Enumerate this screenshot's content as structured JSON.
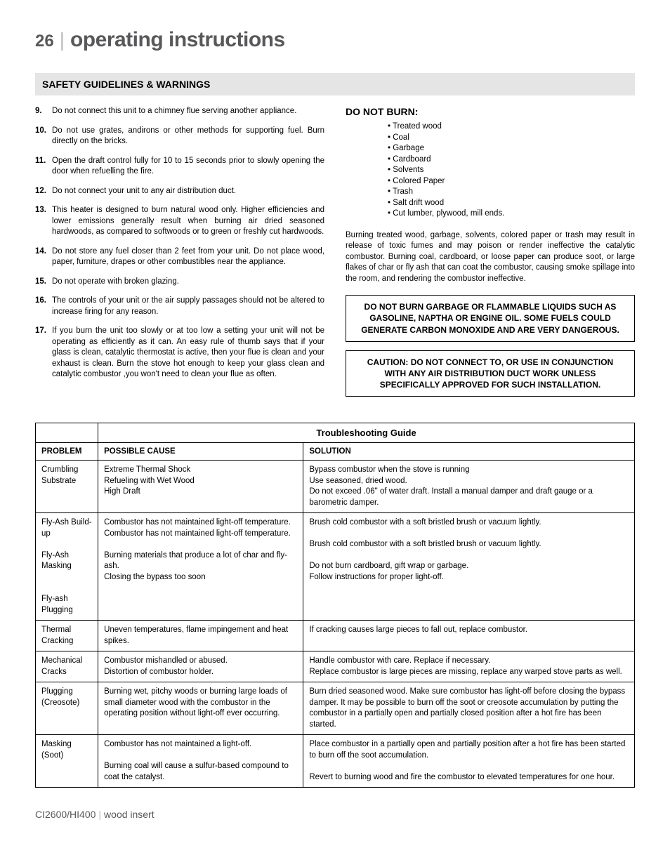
{
  "header": {
    "page": "26",
    "title": "operating instructions"
  },
  "banner": "SAFETY GUIDELINES & WARNINGS",
  "guidelines": [
    {
      "n": "9.",
      "t": "Do not connect this unit to a chimney flue serving another appliance."
    },
    {
      "n": "10.",
      "t": "Do not use grates, andirons or other methods for supporting fuel. Burn directly on the bricks."
    },
    {
      "n": "11.",
      "t": "Open the draft control fully for 10 to 15 seconds prior to slowly opening the door when refuelling the fire."
    },
    {
      "n": "12.",
      "t": "Do not connect your unit to any air distribution duct."
    },
    {
      "n": "13.",
      "t": "This heater is designed to burn natural wood only. Higher efficiencies and lower emissions generally result when burning air dried seasoned hardwoods, as compared to softwoods or to green or freshly cut hardwoods."
    },
    {
      "n": "14.",
      "t": "Do not store any fuel closer than 2 feet from your unit. Do not place wood, paper, furniture, drapes or other combustibles near the appliance."
    },
    {
      "n": "15.",
      "t": "Do not operate with broken glazing."
    },
    {
      "n": "16.",
      "t": "The controls of your unit or the air supply passages should not be altered to increase firing for any reason."
    },
    {
      "n": "17.",
      "t": "If you burn the unit too slowly or at too low a setting your unit will not be operating as efficiently as it can.  An easy rule of thumb says that if your glass is clean, catalytic  thermostat is active, then your flue is clean and your exhaust is clean.  Burn the stove hot enough to keep your glass clean and catalytic combustor ,you won't need to clean your flue as often."
    }
  ],
  "doNotBurn": {
    "heading": "DO NOT BURN:",
    "items": [
      "Treated wood",
      "Coal",
      "Garbage",
      "Cardboard",
      "Solvents",
      "Colored Paper",
      "Trash",
      "Salt drift wood",
      "Cut lumber, plywood, mill ends."
    ]
  },
  "burnPara": "Burning treated wood, garbage, solvents, colored paper or trash may result in release of toxic fumes and may poison or render ineffective the catalytic combustor. Burning coal, cardboard, or loose paper can produce soot, or large flakes of char or fly ash that can coat the combustor, causing smoke spillage into the room, and rendering the combustor ineffective.",
  "warnings": [
    "DO NOT BURN GARBAGE OR FLAMMABLE LIQUIDS SUCH AS GASOLINE, NAPTHA OR ENGINE OIL. SOME FUELS COULD GENERATE CARBON MONOXIDE AND ARE VERY DANGEROUS.",
    "CAUTION: DO NOT CONNECT TO, OR USE IN CONJUNCTION WITH ANY AIR DISTRIBUTION DUCT WORK UNLESS SPECIFICALLY APPROVED FOR SUCH INSTALLATION."
  ],
  "table": {
    "title": "Troubleshooting Guide",
    "headers": [
      "PROBLEM",
      "POSSIBLE CAUSE",
      "SOLUTION"
    ],
    "rows": [
      [
        "Crumbling Substrate",
        "Extreme Thermal Shock\nRefueling with Wet Wood\nHigh Draft",
        "Bypass combustor when the stove is running\nUse seasoned, dried wood.\nDo not exceed .06\" of water draft. Install a manual damper and draft gauge or a barometric damper."
      ],
      [
        "Fly-Ash Build-up\n\nFly-Ash Masking\n\n\nFly-ash Plugging",
        "Combustor has not maintained light-off temperature.\nCombustor has not maintained light-off temperature.\n\nBurning materials that produce a lot of char and fly-ash.\nClosing the bypass too soon",
        "Brush cold combustor with a soft bristled brush or vacuum lightly.\n\nBrush cold combustor with a soft bristled brush or vacuum lightly.\n\nDo not burn cardboard, gift wrap or garbage.\nFollow instructions for proper light-off."
      ],
      [
        "Thermal Cracking",
        "Uneven temperatures, flame impingement and heat spikes.",
        "If cracking causes large pieces to fall out, replace combustor."
      ],
      [
        "Mechanical Cracks",
        "Combustor mishandled or abused.\nDistortion of combustor holder.",
        "Handle combustor with care. Replace if necessary.\nReplace combustor is large pieces are missing, replace any warped stove parts as well."
      ],
      [
        "Plugging (Creosote)",
        "Burning wet, pitchy woods or burning large loads of small diameter wood with the combustor in the operating position without light-off ever occurring.",
        "Burn dried seasoned wood. Make sure combustor has light-off before closing the bypass damper. It may be possible to burn off the soot or creosote accumulation by putting the combustor in a partially open and partially closed position after a hot fire has been started."
      ],
      [
        "Masking (Soot)",
        "Combustor has not maintained a light-off.\n\nBurning coal will cause a sulfur-based compound to coat the catalyst.",
        "Place combustor in a partially open and partially position after a hot fire has been started to burn off the soot accumulation.\n\nRevert to burning wood and fire the combustor to elevated temperatures for one hour."
      ]
    ]
  },
  "footer": {
    "model": "CI2600/HI400",
    "product": "wood insert"
  }
}
